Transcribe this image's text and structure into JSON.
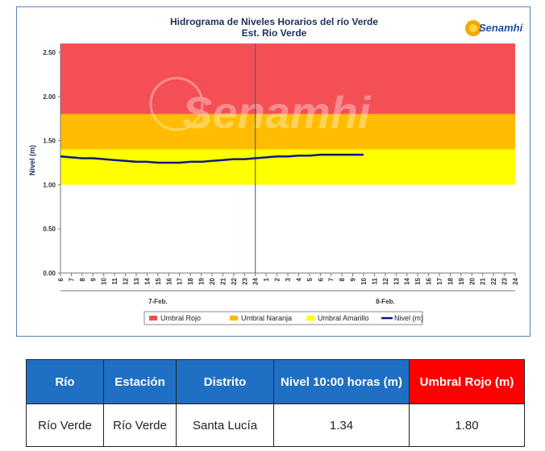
{
  "chart_data": {
    "type": "line",
    "title": "Hidrograma de Niveles Horarios del río Verde",
    "subtitle": "Est. Rio Verde",
    "ylabel": "Nivel (m)",
    "xlabel": "",
    "ylim": [
      0,
      2.6
    ],
    "y_ticks": [
      "0.00",
      "0.50",
      "1.00",
      "1.50",
      "2.00",
      "2.50"
    ],
    "x_ticks": [
      "6",
      "7",
      "8",
      "9",
      "10",
      "11",
      "12",
      "13",
      "14",
      "15",
      "16",
      "17",
      "18",
      "19",
      "20",
      "21",
      "22",
      "23",
      "24",
      "1",
      "2",
      "3",
      "4",
      "5",
      "6",
      "7",
      "8",
      "9",
      "10",
      "11",
      "12",
      "13",
      "14",
      "15",
      "16",
      "17",
      "18",
      "19",
      "20",
      "21",
      "22",
      "23",
      "24"
    ],
    "day_labels": [
      "7-Feb.",
      "8-Feb."
    ],
    "grid": false,
    "legend_position": "bottom",
    "bands": [
      {
        "name": "Umbral Rojo",
        "from": 1.8,
        "to": 2.6,
        "color": "#f44f55"
      },
      {
        "name": "Umbral Naranja",
        "from": 1.4,
        "to": 1.8,
        "color": "#ffbc00"
      },
      {
        "name": "Umbral Amarillo",
        "from": 1.0,
        "to": 1.4,
        "color": "#ffff00"
      }
    ],
    "series": [
      {
        "name": "Nivel (m)",
        "color": "#0a1a80",
        "x": [
          0,
          1,
          2,
          3,
          4,
          5,
          6,
          7,
          8,
          9,
          10,
          11,
          12,
          13,
          14,
          15,
          16,
          17,
          18,
          19,
          20,
          21,
          22,
          23,
          24,
          25,
          26,
          27,
          28
        ],
        "values": [
          1.32,
          1.31,
          1.3,
          1.3,
          1.29,
          1.28,
          1.27,
          1.26,
          1.26,
          1.25,
          1.25,
          1.25,
          1.26,
          1.26,
          1.27,
          1.28,
          1.29,
          1.29,
          1.3,
          1.31,
          1.32,
          1.32,
          1.33,
          1.33,
          1.34,
          1.34,
          1.34,
          1.34,
          1.34
        ]
      }
    ],
    "vline_at": 18
  },
  "logo": {
    "text": "Senamhi",
    "watermark": "Senamhi"
  },
  "table": {
    "headers": [
      "Río",
      "Estación",
      "Distrito",
      "Nivel 10:00 horas (m)",
      "Umbral Rojo (m)"
    ],
    "row": [
      "Río Verde",
      "Río Verde",
      "Santa Lucía",
      "1.34",
      "1.80"
    ]
  }
}
